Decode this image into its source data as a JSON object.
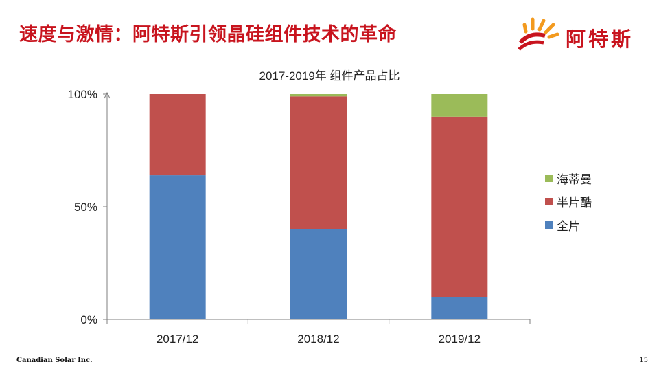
{
  "slide": {
    "title": "速度与激情：阿特斯引领晶硅组件技术的革命",
    "logo_text": "阿特斯",
    "footer_company": "Canadian Solar Inc.",
    "page_number": "15"
  },
  "colors": {
    "title_red": "#c8141e",
    "logo_orange": "#f39a1e",
    "series_blue": "#4f81bd",
    "series_red": "#c0504d",
    "series_green": "#9bbb59"
  },
  "chart_data": {
    "type": "bar",
    "stacked": true,
    "title": "2017-2019年  组件产品占比",
    "categories": [
      "2017/12",
      "2018/12",
      "2019/12"
    ],
    "series": [
      {
        "name": "全片",
        "values": [
          64,
          40,
          10
        ],
        "color": "#4f81bd"
      },
      {
        "name": "半片酷",
        "values": [
          36,
          59,
          80
        ],
        "color": "#c0504d"
      },
      {
        "name": "海蒂曼",
        "values": [
          0,
          1,
          10
        ],
        "color": "#9bbb59"
      }
    ],
    "ylim": [
      0,
      100
    ],
    "yticks": [
      0,
      50,
      100
    ],
    "ytick_labels": [
      "0%",
      "50%",
      "100%"
    ],
    "xlabel": "",
    "ylabel": "",
    "grid": false,
    "legend_position": "right",
    "legend_order": [
      "海蒂曼",
      "半片酷",
      "全片"
    ]
  }
}
